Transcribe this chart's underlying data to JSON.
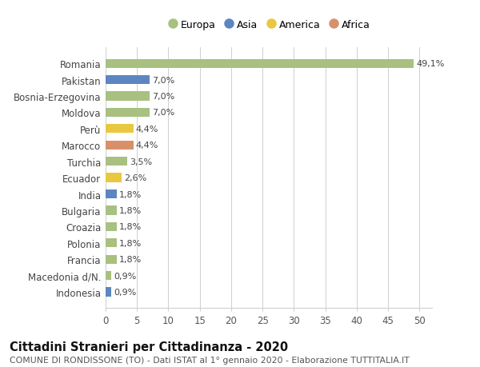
{
  "countries": [
    "Romania",
    "Pakistan",
    "Bosnia-Erzegovina",
    "Moldova",
    "Perù",
    "Marocco",
    "Turchia",
    "Ecuador",
    "India",
    "Bulgaria",
    "Croazia",
    "Polonia",
    "Francia",
    "Macedonia d/N.",
    "Indonesia"
  ],
  "values": [
    49.1,
    7.0,
    7.0,
    7.0,
    4.4,
    4.4,
    3.5,
    2.6,
    1.8,
    1.8,
    1.8,
    1.8,
    1.8,
    0.9,
    0.9
  ],
  "labels": [
    "49,1%",
    "7,0%",
    "7,0%",
    "7,0%",
    "4,4%",
    "4,4%",
    "3,5%",
    "2,6%",
    "1,8%",
    "1,8%",
    "1,8%",
    "1,8%",
    "1,8%",
    "0,9%",
    "0,9%"
  ],
  "continents": [
    "Europa",
    "Asia",
    "Europa",
    "Europa",
    "America",
    "Africa",
    "Europa",
    "America",
    "Asia",
    "Europa",
    "Europa",
    "Europa",
    "Europa",
    "Europa",
    "Asia"
  ],
  "colors": {
    "Europa": "#a8c080",
    "Asia": "#5b86c0",
    "America": "#e8c840",
    "Africa": "#d8906a"
  },
  "legend_order": [
    "Europa",
    "Asia",
    "America",
    "Africa"
  ],
  "legend_colors": [
    "#a8c080",
    "#5b86c0",
    "#e8c840",
    "#d8906a"
  ],
  "title": "Cittadini Stranieri per Cittadinanza - 2020",
  "subtitle": "COMUNE DI RONDISSONE (TO) - Dati ISTAT al 1° gennaio 2020 - Elaborazione TUTTITALIA.IT",
  "xlim": [
    0,
    52
  ],
  "xticks": [
    0,
    5,
    10,
    15,
    20,
    25,
    30,
    35,
    40,
    45,
    50
  ],
  "bg_color": "#ffffff",
  "grid_color": "#d0d0d0",
  "bar_height": 0.55,
  "label_fontsize": 8.0,
  "axis_label_fontsize": 8.5,
  "title_fontsize": 10.5,
  "subtitle_fontsize": 7.8
}
